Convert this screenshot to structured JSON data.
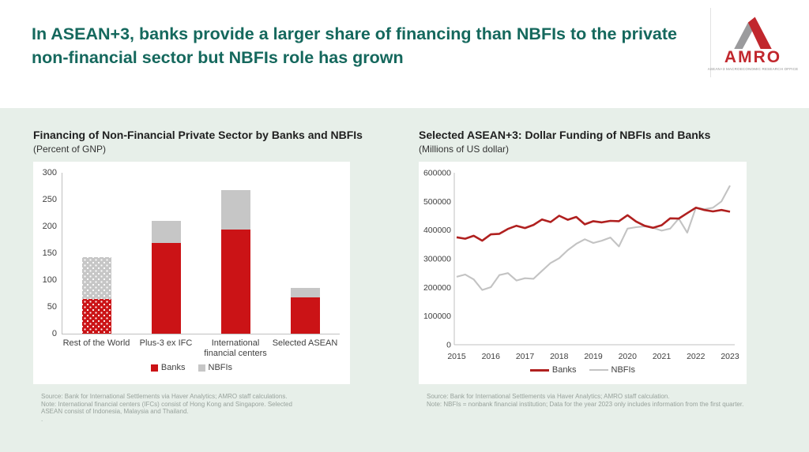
{
  "header": {
    "title_line1": "In ASEAN+3, banks provide a larger share of financing than NBFIs to the private",
    "title_line2": "non-financial sector but NBFIs role has grown",
    "title_color": "#15685d",
    "logo": {
      "name": "AMRO",
      "tagline": "ASEAN+3 MACROECONOMIC RESEARCH OFFICE",
      "red": "#c1272d",
      "gray": "#9b9b9d"
    }
  },
  "left": {
    "title": "Financing of Non-Financial Private Sector by Banks and NBFIs",
    "subtitle": "(Percent of GNP)",
    "footnote": [
      "Source: Bank for International Settlements via Haver Analytics; AMRO staff calculations.",
      "Note: International financial centers (IFCs) consist of Hong Kong and Singapore. Selected",
      "ASEAN consist of Indonesia, Malaysia and Thailand.",
      "."
    ]
  },
  "right": {
    "title": "Selected ASEAN+3: Dollar Funding of NBFIs and Banks",
    "subtitle": "(Millions of US dollar)",
    "footnote": [
      "Source: Bank for International Settlements via Haver Analytics; AMRO staff calculation.",
      "Note: NBFIs = nonbank financial institution; Data for the year 2023 only includes information from the first quarter."
    ]
  },
  "chart_data": [
    {
      "type": "bar",
      "stacked": true,
      "title": "Financing of Non-Financial Private Sector by Banks and NBFIs",
      "subtitle": "(Percent of GNP)",
      "categories": [
        "Rest of the World",
        "Plus-3 ex IFC",
        "International financial centers",
        "Selected ASEAN"
      ],
      "series": [
        {
          "name": "Banks",
          "color": "#cb1316",
          "values": [
            65,
            169,
            194,
            67
          ]
        },
        {
          "name": "NBFIs",
          "color": "#c6c6c6",
          "values": [
            78,
            41,
            74,
            18
          ]
        }
      ],
      "ylim": [
        0,
        300
      ],
      "yticks": [
        0,
        50,
        100,
        150,
        200,
        250,
        300
      ],
      "grid": false,
      "legend_position": "bottom",
      "style_note": "Rest of the World bar drawn with white dotted pattern fill"
    },
    {
      "type": "line",
      "title": "Selected ASEAN+3: Dollar Funding of NBFIs and Banks",
      "subtitle": "(Millions of US dollar)",
      "x_frequency": "quarterly",
      "x_start": "2015-Q1",
      "x_end": "2023-Q1",
      "x_tick_labels": [
        "2015",
        "2016",
        "2017",
        "2018",
        "2019",
        "2020",
        "2021",
        "2022",
        "2023"
      ],
      "series": [
        {
          "name": "Banks",
          "color": "#b0201f",
          "values": [
            375000,
            370000,
            380000,
            363000,
            385000,
            387000,
            404000,
            415000,
            407000,
            418000,
            437000,
            428000,
            450000,
            436000,
            446000,
            420000,
            431000,
            427000,
            432000,
            431000,
            452000,
            430000,
            415000,
            408000,
            417000,
            441000,
            440000,
            459000,
            478000,
            470000,
            465000,
            470000,
            464000
          ]
        },
        {
          "name": "NBFIs",
          "color": "#c3c3c3",
          "values": [
            237000,
            245000,
            228000,
            191000,
            201000,
            243000,
            250000,
            224000,
            232000,
            230000,
            258000,
            285000,
            302000,
            330000,
            352000,
            368000,
            355000,
            363000,
            374000,
            343000,
            405000,
            410000,
            413000,
            408000,
            398000,
            405000,
            440000,
            391000,
            478000,
            473000,
            478000,
            500000,
            555000
          ]
        }
      ],
      "ylim": [
        0,
        600000
      ],
      "yticks": [
        0,
        100000,
        200000,
        300000,
        400000,
        500000,
        600000
      ],
      "grid": false,
      "legend_position": "bottom"
    }
  ]
}
